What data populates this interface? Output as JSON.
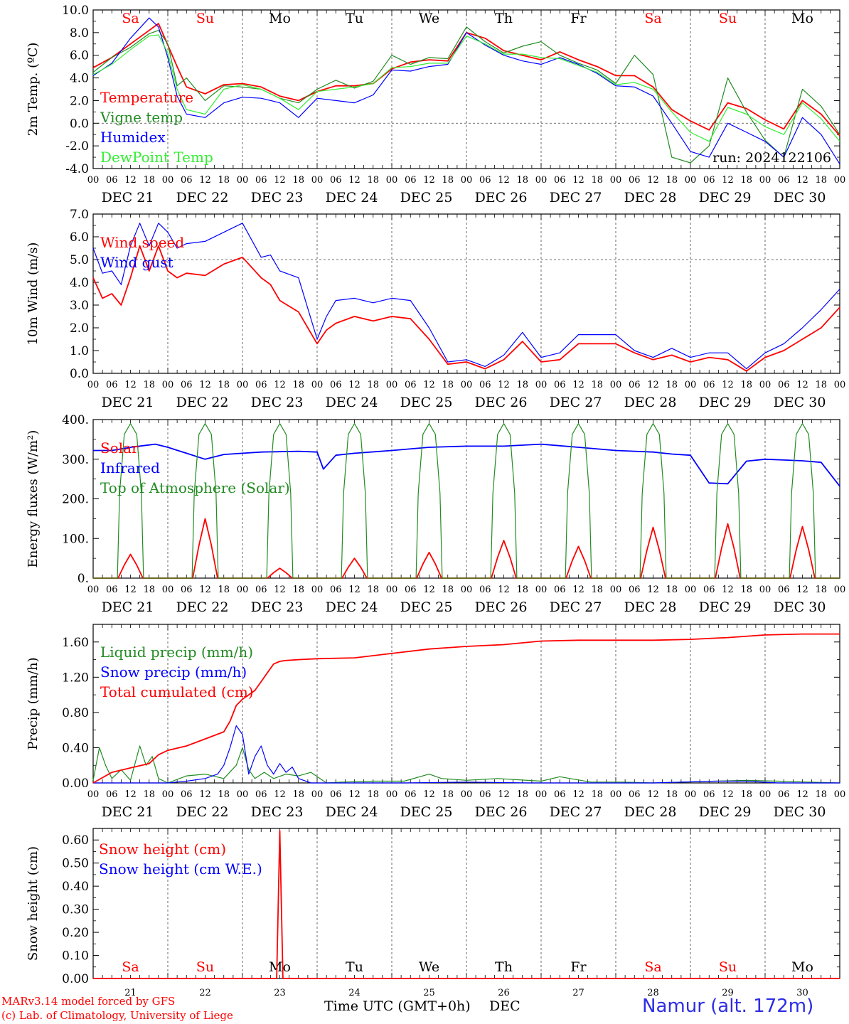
{
  "footer": {
    "model_text": "MARv3.14 model forced by GFS",
    "copyright_text": "(c) Lab. of Climatology, University of Liege",
    "x_axis_label": "Time UTC (GMT+0h)",
    "month_label": "DEC",
    "station_text": "Namur (alt. 172m)"
  },
  "colors": {
    "red": "#ff0000",
    "green": "#228b22",
    "blue": "#0000ff",
    "light_green": "#33ee33",
    "grid": "#555555"
  },
  "time_axis": {
    "hour_labels": [
      "00",
      "06",
      "12",
      "18"
    ],
    "final_hour_label": "00",
    "date_labels": [
      "DEC 21",
      "DEC 22",
      "DEC 23",
      "DEC 24",
      "DEC 25",
      "DEC 26",
      "DEC 27",
      "DEC 28",
      "DEC 29",
      "DEC 30"
    ],
    "day_numbers": [
      "21",
      "22",
      "23",
      "24",
      "25",
      "26",
      "27",
      "28",
      "29",
      "30"
    ],
    "weekday_labels": [
      "Sa",
      "Su",
      "Mo",
      "Tu",
      "We",
      "Th",
      "Fr",
      "Sa",
      "Su",
      "Mo"
    ],
    "weekday_colors": [
      "#ff0000",
      "#ff0000",
      "#000000",
      "#000000",
      "#000000",
      "#000000",
      "#000000",
      "#ff0000",
      "#ff0000",
      "#000000"
    ]
  },
  "chart_data": [
    {
      "type": "line",
      "ylabel": "2m Temp. (ºC)",
      "ylim": [
        -4,
        10
      ],
      "yticks": [
        "-4.0",
        "-2.0",
        "0.0",
        "2.0",
        "4.0",
        "6.0",
        "8.0",
        "10.0"
      ],
      "ytick_values": [
        -4,
        -2,
        0,
        2,
        4,
        6,
        8,
        10
      ],
      "reference_line": 0,
      "annotation": "run: 2024122106",
      "x_hours": [
        0,
        6,
        12,
        18,
        21,
        24,
        27,
        30,
        36,
        42,
        48,
        54,
        60,
        66,
        72,
        78,
        84,
        90,
        96,
        102,
        108,
        114,
        120,
        126,
        132,
        138,
        144,
        150,
        156,
        162,
        168,
        174,
        180,
        186,
        192,
        198,
        204,
        210,
        216,
        222,
        228,
        234,
        240
      ],
      "series": [
        {
          "name": "Temperature",
          "color": "#ff0000",
          "values": [
            4.9,
            5.8,
            7.0,
            8.2,
            8.8,
            6.9,
            5.0,
            3.2,
            2.6,
            3.4,
            3.5,
            3.2,
            2.4,
            2.0,
            2.8,
            3.3,
            3.3,
            3.5,
            4.8,
            5.4,
            5.6,
            5.5,
            8.0,
            7.5,
            6.4,
            6.0,
            5.6,
            6.3,
            5.6,
            5.0,
            4.2,
            4.2,
            3.2,
            1.2,
            0.2,
            -0.6,
            1.8,
            1.3,
            0.3,
            -0.5,
            2.0,
            0.8,
            -1.1
          ],
          "width": 1.8
        },
        {
          "name": "Vigne temp",
          "color": "#228b22",
          "values": [
            4.5,
            5.8,
            6.7,
            7.9,
            8.2,
            7.0,
            3.3,
            4.0,
            2.0,
            3.3,
            3.2,
            3.0,
            2.2,
            1.8,
            3.0,
            3.8,
            3.1,
            3.7,
            6.0,
            5.2,
            5.8,
            5.7,
            8.5,
            7.2,
            6.2,
            6.8,
            7.2,
            6.0,
            5.3,
            4.7,
            3.5,
            6.0,
            4.3,
            -3.0,
            -3.5,
            -2.0,
            4.0,
            1.0,
            -1.5,
            -3.0,
            3.0,
            1.5,
            -1.0
          ],
          "width": 1.2
        },
        {
          "name": "Humidex",
          "color": "#0000ff",
          "values": [
            4.2,
            5.3,
            7.5,
            9.3,
            8.5,
            5.8,
            2.4,
            0.8,
            0.5,
            1.8,
            2.3,
            2.2,
            1.8,
            0.5,
            2.2,
            2.0,
            1.8,
            2.5,
            4.7,
            4.6,
            5.0,
            5.2,
            8.0,
            6.9,
            6.0,
            5.5,
            5.2,
            5.8,
            5.2,
            4.4,
            3.3,
            3.2,
            2.4,
            0.0,
            -2.5,
            -3.0,
            0.0,
            -0.8,
            -1.6,
            -3.0,
            0.5,
            -1.0,
            -3.6
          ],
          "width": 1.2
        },
        {
          "name": "DewPoint Temp",
          "color": "#33ee33",
          "values": [
            4.3,
            5.2,
            6.5,
            7.7,
            7.8,
            6.2,
            3.0,
            1.2,
            0.8,
            3.0,
            3.4,
            3.0,
            2.2,
            1.2,
            2.8,
            3.0,
            3.2,
            3.5,
            4.9,
            5.0,
            5.3,
            5.3,
            7.7,
            7.0,
            6.1,
            6.1,
            5.8,
            5.7,
            5.1,
            4.5,
            3.4,
            3.6,
            3.0,
            1.0,
            -0.8,
            -1.6,
            1.4,
            0.8,
            -0.3,
            -1.0,
            1.8,
            0.4,
            -1.6
          ],
          "width": 1.2
        }
      ]
    },
    {
      "type": "line",
      "ylabel": "10m Wind (m/s)",
      "ylim": [
        0,
        7
      ],
      "yticks": [
        "0.0",
        "1.0",
        "2.0",
        "3.0",
        "4.0",
        "5.0",
        "6.0",
        "7.0"
      ],
      "ytick_values": [
        0,
        1,
        2,
        3,
        4,
        5,
        6,
        7
      ],
      "reference_line": 5,
      "x_hours": [
        0,
        3,
        6,
        9,
        12,
        15,
        18,
        21,
        24,
        27,
        30,
        36,
        42,
        48,
        54,
        57,
        60,
        66,
        72,
        75,
        78,
        84,
        90,
        96,
        102,
        108,
        114,
        120,
        126,
        132,
        138,
        144,
        150,
        156,
        162,
        168,
        174,
        180,
        186,
        192,
        198,
        204,
        210,
        216,
        222,
        228,
        234,
        240
      ],
      "series": [
        {
          "name": "Wind speed",
          "color": "#ff0000",
          "values": [
            4.2,
            3.3,
            3.5,
            3.0,
            4.2,
            5.6,
            4.5,
            5.6,
            4.5,
            4.2,
            4.4,
            4.3,
            4.8,
            5.1,
            4.2,
            3.9,
            3.2,
            2.7,
            1.3,
            1.9,
            2.2,
            2.5,
            2.3,
            2.5,
            2.4,
            1.5,
            0.4,
            0.5,
            0.2,
            0.6,
            1.4,
            0.5,
            0.6,
            1.3,
            1.3,
            1.3,
            0.9,
            0.6,
            0.8,
            0.5,
            0.7,
            0.6,
            0.1,
            0.7,
            1.0,
            1.5,
            2.0,
            2.9
          ],
          "width": 1.8
        },
        {
          "name": "Wind gust",
          "color": "#0000ff",
          "values": [
            5.5,
            4.4,
            4.5,
            3.9,
            5.6,
            6.6,
            5.6,
            6.6,
            6.2,
            5.5,
            5.7,
            5.8,
            6.2,
            6.6,
            5.1,
            5.2,
            4.5,
            4.2,
            1.5,
            2.5,
            3.2,
            3.3,
            3.1,
            3.3,
            3.2,
            2.0,
            0.5,
            0.6,
            0.3,
            0.8,
            1.8,
            0.7,
            0.9,
            1.7,
            1.7,
            1.7,
            1.0,
            0.7,
            1.1,
            0.7,
            0.9,
            0.9,
            0.2,
            0.9,
            1.3,
            2.0,
            2.8,
            3.7
          ],
          "width": 1.2
        }
      ]
    },
    {
      "type": "line",
      "ylabel": "Energy fluxes (W/m²)",
      "ylim": [
        0,
        400
      ],
      "yticks": [
        "0.",
        "100.",
        "200.",
        "300.",
        "400."
      ],
      "ytick_values": [
        0,
        100,
        200,
        300,
        400
      ],
      "x_hours": [
        0,
        6,
        12,
        18,
        20,
        24,
        30,
        36,
        42,
        48,
        54,
        66,
        72,
        74,
        78,
        84,
        96,
        108,
        120,
        132,
        144,
        156,
        168,
        180,
        186,
        192,
        198,
        204,
        210,
        216,
        222,
        228,
        234,
        240
      ],
      "series": [
        {
          "name": "Solar",
          "color": "#ff0000",
          "solar_peaks": [
            [
              12,
              60
            ],
            [
              36,
              150
            ],
            [
              60,
              25
            ],
            [
              84,
              50
            ],
            [
              108,
              65
            ],
            [
              132,
              95
            ],
            [
              156,
              80
            ],
            [
              180,
              128
            ],
            [
              204,
              137
            ],
            [
              228,
              130
            ]
          ],
          "width": 1.8
        },
        {
          "name": "Infrared",
          "color": "#0000ff",
          "values": [
            322,
            322,
            330,
            336,
            338,
            330,
            315,
            300,
            312,
            315,
            318,
            320,
            318,
            275,
            310,
            315,
            322,
            330,
            333,
            333,
            338,
            330,
            322,
            318,
            313,
            310,
            240,
            238,
            295,
            300,
            298,
            296,
            292,
            232
          ],
          "width": 1.8
        },
        {
          "name": "Top of Atmosphere (Solar)",
          "color": "#228b22",
          "daily_peak": 390,
          "width": 1.2
        }
      ]
    },
    {
      "type": "line",
      "ylabel": "Precip (mm/h)",
      "ylim": [
        0,
        1.8
      ],
      "yticks": [
        "0.00",
        "0.40",
        "0.80",
        "1.20",
        "1.60"
      ],
      "ytick_values": [
        0,
        0.4,
        0.8,
        1.2,
        1.6
      ],
      "series": [
        {
          "name": "Liquid precip (mm/h)",
          "color": "#228b22",
          "x_hours": [
            0,
            2,
            4,
            6,
            9,
            12,
            15,
            17,
            19,
            21,
            24,
            30,
            36,
            42,
            46,
            48,
            50,
            52,
            55,
            58,
            62,
            66,
            70,
            75,
            80,
            90,
            100,
            108,
            112,
            120,
            130,
            144,
            150,
            160,
            170,
            180,
            190,
            200,
            210,
            220,
            230,
            240
          ],
          "values": [
            0.03,
            0.4,
            0.2,
            0.05,
            0.15,
            0.03,
            0.42,
            0.2,
            0.3,
            0.05,
            0.0,
            0.08,
            0.1,
            0.05,
            0.2,
            0.4,
            0.15,
            0.05,
            0.12,
            0.05,
            0.1,
            0.08,
            0.12,
            0.0,
            0.01,
            0.02,
            0.02,
            0.1,
            0.05,
            0.03,
            0.05,
            0.02,
            0.07,
            0.01,
            0.01,
            0.0,
            0.01,
            0.02,
            0.03,
            0.02,
            0.01,
            0.0
          ],
          "width": 1.2
        },
        {
          "name": "Snow precip (mm/h)",
          "color": "#0000ff",
          "x_hours": [
            0,
            6,
            12,
            18,
            24,
            30,
            36,
            40,
            42,
            44,
            46,
            48,
            50,
            52,
            54,
            56,
            58,
            60,
            62,
            64,
            66,
            70,
            80,
            100,
            120,
            140,
            160,
            180,
            200,
            210,
            220,
            240
          ],
          "values": [
            0.0,
            0.0,
            0.0,
            0.0,
            0.0,
            0.02,
            0.05,
            0.1,
            0.2,
            0.4,
            0.65,
            0.55,
            0.1,
            0.3,
            0.42,
            0.2,
            0.1,
            0.22,
            0.12,
            0.18,
            0.05,
            0.0,
            0.0,
            0.0,
            0.01,
            0.0,
            0.0,
            0.0,
            0.02,
            0.02,
            0.0,
            0.0
          ],
          "width": 1.2
        },
        {
          "name": "Total cumulated (cm)",
          "color": "#ff0000",
          "x_hours": [
            0,
            6,
            12,
            18,
            21,
            24,
            30,
            36,
            42,
            44,
            46,
            48,
            50,
            52,
            54,
            56,
            58,
            60,
            62,
            66,
            72,
            84,
            96,
            108,
            120,
            132,
            144,
            156,
            168,
            180,
            192,
            204,
            216,
            228,
            240
          ],
          "values": [
            0.0,
            0.12,
            0.17,
            0.22,
            0.32,
            0.37,
            0.42,
            0.5,
            0.58,
            0.7,
            0.88,
            0.95,
            1.0,
            1.05,
            1.15,
            1.25,
            1.35,
            1.38,
            1.39,
            1.4,
            1.41,
            1.42,
            1.47,
            1.52,
            1.55,
            1.57,
            1.61,
            1.62,
            1.62,
            1.62,
            1.63,
            1.65,
            1.68,
            1.69,
            1.69
          ],
          "width": 1.8
        }
      ]
    },
    {
      "type": "line",
      "ylabel": "Snow height (cm)",
      "ylim": [
        0,
        0.65
      ],
      "yticks": [
        "0.00",
        "0.10",
        "0.20",
        "0.30",
        "0.40",
        "0.50",
        "0.60"
      ],
      "ytick_values": [
        0,
        0.1,
        0.2,
        0.3,
        0.4,
        0.5,
        0.6
      ],
      "series": [
        {
          "name": "Snow height (cm)",
          "color": "#ff0000",
          "x_hours": [
            0,
            59,
            60,
            61,
            240
          ],
          "values": [
            0.0,
            0.0,
            0.64,
            0.0,
            0.0
          ],
          "width": 1.8
        },
        {
          "name": "Snow height (cm W.E.)",
          "color": "#0000ff",
          "x_hours": [],
          "values": [],
          "width": 1.2
        }
      ]
    }
  ]
}
